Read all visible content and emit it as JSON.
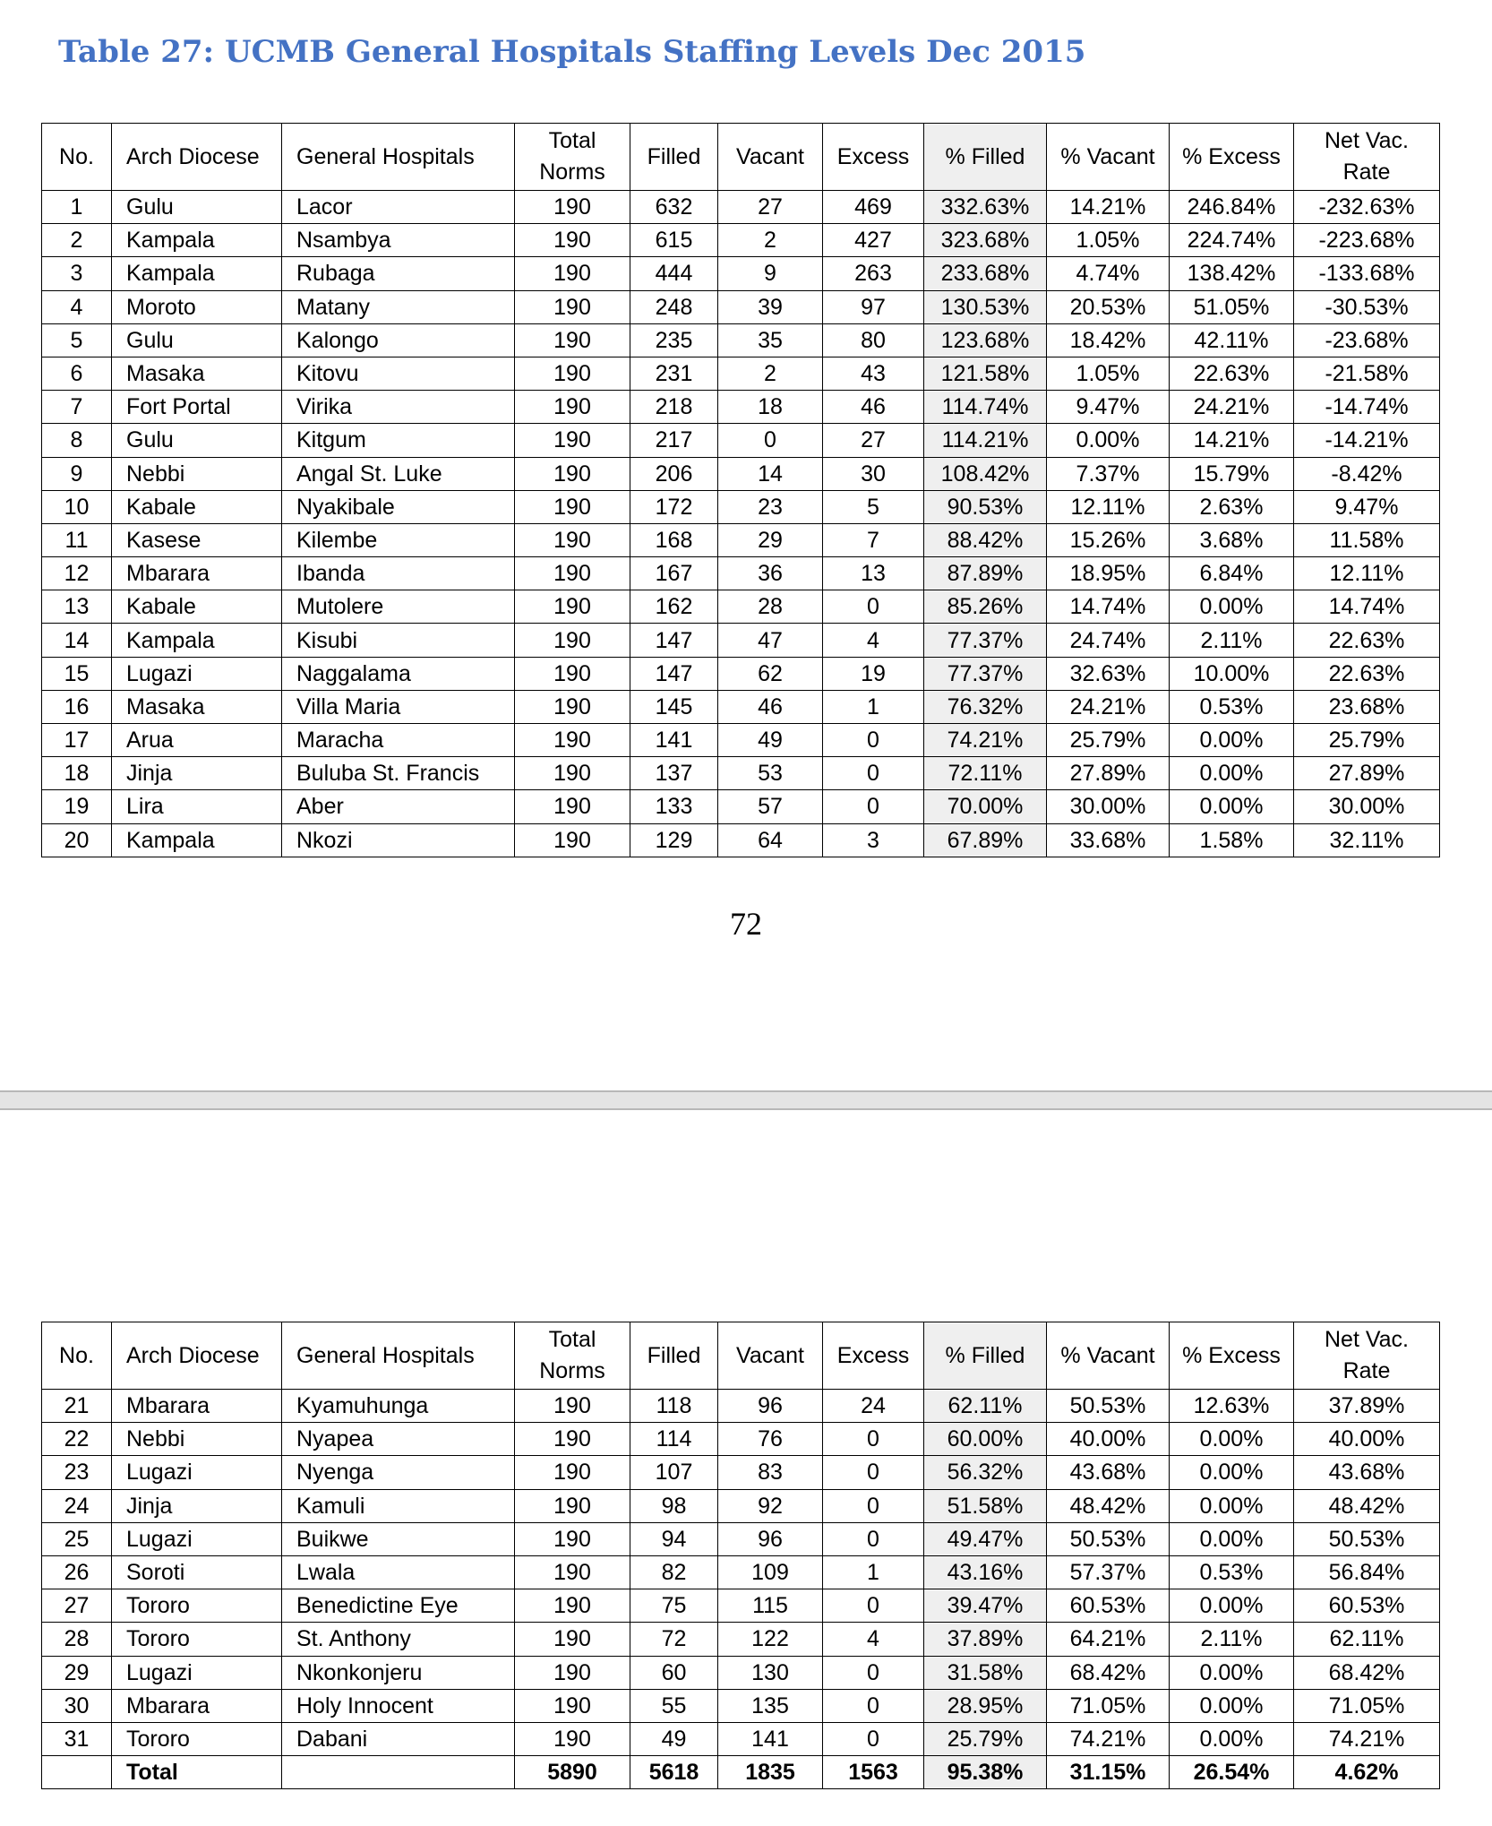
{
  "title": "Table 27: UCMB General Hospitals Staffing Levels Dec 2015",
  "page_number": "72",
  "headers": {
    "no": "No.",
    "arch_diocese": "Arch Diocese",
    "general_hospitals": "General Hospitals",
    "total_norms": "Total Norms",
    "filled": "Filled",
    "vacant": "Vacant",
    "excess": "Excess",
    "pct_filled": "% Filled",
    "pct_vacant": "% Vacant",
    "pct_excess": "% Excess",
    "net_vac_rate": "Net Vac. Rate"
  },
  "rows_page1": [
    [
      "1",
      "Gulu",
      "Lacor",
      "190",
      "632",
      "27",
      "469",
      "332.63%",
      "14.21%",
      "246.84%",
      "-232.63%"
    ],
    [
      "2",
      "Kampala",
      "Nsambya",
      "190",
      "615",
      "2",
      "427",
      "323.68%",
      "1.05%",
      "224.74%",
      "-223.68%"
    ],
    [
      "3",
      "Kampala",
      "Rubaga",
      "190",
      "444",
      "9",
      "263",
      "233.68%",
      "4.74%",
      "138.42%",
      "-133.68%"
    ],
    [
      "4",
      "Moroto",
      "Matany",
      "190",
      "248",
      "39",
      "97",
      "130.53%",
      "20.53%",
      "51.05%",
      "-30.53%"
    ],
    [
      "5",
      "Gulu",
      "Kalongo",
      "190",
      "235",
      "35",
      "80",
      "123.68%",
      "18.42%",
      "42.11%",
      "-23.68%"
    ],
    [
      "6",
      "Masaka",
      "Kitovu",
      "190",
      "231",
      "2",
      "43",
      "121.58%",
      "1.05%",
      "22.63%",
      "-21.58%"
    ],
    [
      "7",
      "Fort Portal",
      "Virika",
      "190",
      "218",
      "18",
      "46",
      "114.74%",
      "9.47%",
      "24.21%",
      "-14.74%"
    ],
    [
      "8",
      "Gulu",
      "Kitgum",
      "190",
      "217",
      "0",
      "27",
      "114.21%",
      "0.00%",
      "14.21%",
      "-14.21%"
    ],
    [
      "9",
      "Nebbi",
      "Angal St. Luke",
      "190",
      "206",
      "14",
      "30",
      "108.42%",
      "7.37%",
      "15.79%",
      "-8.42%"
    ],
    [
      "10",
      "Kabale",
      "Nyakibale",
      "190",
      "172",
      "23",
      "5",
      "90.53%",
      "12.11%",
      "2.63%",
      "9.47%"
    ],
    [
      "11",
      "Kasese",
      "Kilembe",
      "190",
      "168",
      "29",
      "7",
      "88.42%",
      "15.26%",
      "3.68%",
      "11.58%"
    ],
    [
      "12",
      "Mbarara",
      "Ibanda",
      "190",
      "167",
      "36",
      "13",
      "87.89%",
      "18.95%",
      "6.84%",
      "12.11%"
    ],
    [
      "13",
      "Kabale",
      "Mutolere",
      "190",
      "162",
      "28",
      "0",
      "85.26%",
      "14.74%",
      "0.00%",
      "14.74%"
    ],
    [
      "14",
      "Kampala",
      "Kisubi",
      "190",
      "147",
      "47",
      "4",
      "77.37%",
      "24.74%",
      "2.11%",
      "22.63%"
    ],
    [
      "15",
      "Lugazi",
      "Naggalama",
      "190",
      "147",
      "62",
      "19",
      "77.37%",
      "32.63%",
      "10.00%",
      "22.63%"
    ],
    [
      "16",
      "Masaka",
      "Villa Maria",
      "190",
      "145",
      "46",
      "1",
      "76.32%",
      "24.21%",
      "0.53%",
      "23.68%"
    ],
    [
      "17",
      "Arua",
      "Maracha",
      "190",
      "141",
      "49",
      "0",
      "74.21%",
      "25.79%",
      "0.00%",
      "25.79%"
    ],
    [
      "18",
      "Jinja",
      "Buluba St. Francis",
      "190",
      "137",
      "53",
      "0",
      "72.11%",
      "27.89%",
      "0.00%",
      "27.89%"
    ],
    [
      "19",
      "Lira",
      "Aber",
      "190",
      "133",
      "57",
      "0",
      "70.00%",
      "30.00%",
      "0.00%",
      "30.00%"
    ],
    [
      "20",
      "Kampala",
      "Nkozi",
      "190",
      "129",
      "64",
      "3",
      "67.89%",
      "33.68%",
      "1.58%",
      "32.11%"
    ]
  ],
  "rows_page2": [
    [
      "21",
      "Mbarara",
      "Kyamuhunga",
      "190",
      "118",
      "96",
      "24",
      "62.11%",
      "50.53%",
      "12.63%",
      "37.89%"
    ],
    [
      "22",
      "Nebbi",
      "Nyapea",
      "190",
      "114",
      "76",
      "0",
      "60.00%",
      "40.00%",
      "0.00%",
      "40.00%"
    ],
    [
      "23",
      "Lugazi",
      "Nyenga",
      "190",
      "107",
      "83",
      "0",
      "56.32%",
      "43.68%",
      "0.00%",
      "43.68%"
    ],
    [
      "24",
      "Jinja",
      "Kamuli",
      "190",
      "98",
      "92",
      "0",
      "51.58%",
      "48.42%",
      "0.00%",
      "48.42%"
    ],
    [
      "25",
      "Lugazi",
      "Buikwe",
      "190",
      "94",
      "96",
      "0",
      "49.47%",
      "50.53%",
      "0.00%",
      "50.53%"
    ],
    [
      "26",
      "Soroti",
      "Lwala",
      "190",
      "82",
      "109",
      "1",
      "43.16%",
      "57.37%",
      "0.53%",
      "56.84%"
    ],
    [
      "27",
      "Tororo",
      "Benedictine Eye",
      "190",
      "75",
      "115",
      "0",
      "39.47%",
      "60.53%",
      "0.00%",
      "60.53%"
    ],
    [
      "28",
      "Tororo",
      "St. Anthony",
      "190",
      "72",
      "122",
      "4",
      "37.89%",
      "64.21%",
      "2.11%",
      "62.11%"
    ],
    [
      "29",
      "Lugazi",
      "Nkonkonjeru",
      "190",
      "60",
      "130",
      "0",
      "31.58%",
      "68.42%",
      "0.00%",
      "68.42%"
    ],
    [
      "30",
      "Mbarara",
      "Holy Innocent",
      "190",
      "55",
      "135",
      "0",
      "28.95%",
      "71.05%",
      "0.00%",
      "71.05%"
    ],
    [
      "31",
      "Tororo",
      "Dabani",
      "190",
      "49",
      "141",
      "0",
      "25.79%",
      "74.21%",
      "0.00%",
      "74.21%"
    ]
  ],
  "total_row": [
    "",
    "Total",
    "",
    "5890",
    "5618",
    "1835",
    "1563",
    "95.38%",
    "31.15%",
    "26.54%",
    "4.62%"
  ]
}
